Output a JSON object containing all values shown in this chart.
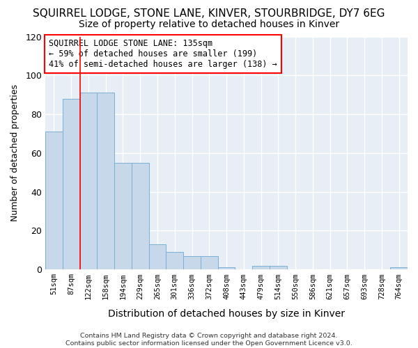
{
  "title": "SQUIRREL LODGE, STONE LANE, KINVER, STOURBRIDGE, DY7 6EG",
  "subtitle": "Size of property relative to detached houses in Kinver",
  "xlabel": "Distribution of detached houses by size in Kinver",
  "ylabel": "Number of detached properties",
  "categories": [
    "51sqm",
    "87sqm",
    "122sqm",
    "158sqm",
    "194sqm",
    "229sqm",
    "265sqm",
    "301sqm",
    "336sqm",
    "372sqm",
    "408sqm",
    "443sqm",
    "479sqm",
    "514sqm",
    "550sqm",
    "586sqm",
    "621sqm",
    "657sqm",
    "693sqm",
    "728sqm",
    "764sqm"
  ],
  "values": [
    71,
    88,
    91,
    91,
    55,
    55,
    13,
    9,
    7,
    7,
    1,
    0,
    2,
    2,
    0,
    0,
    0,
    0,
    0,
    0,
    1
  ],
  "bar_color": "#c8d8eb",
  "bar_edge_color": "#7aafd4",
  "ylim": [
    0,
    120
  ],
  "yticks": [
    0,
    20,
    40,
    60,
    80,
    100,
    120
  ],
  "red_line_x": 1.5,
  "annotation_text": "SQUIRREL LODGE STONE LANE: 135sqm\n← 59% of detached houses are smaller (199)\n41% of semi-detached houses are larger (138) →",
  "footnote": "Contains HM Land Registry data © Crown copyright and database right 2024.\nContains public sector information licensed under the Open Government Licence v3.0.",
  "background_color": "#ffffff",
  "plot_bg_color": "#e8eef5",
  "grid_color": "#ffffff",
  "title_fontsize": 11,
  "subtitle_fontsize": 10,
  "annot_fontsize": 8.5,
  "ylabel_fontsize": 9,
  "xlabel_fontsize": 10
}
